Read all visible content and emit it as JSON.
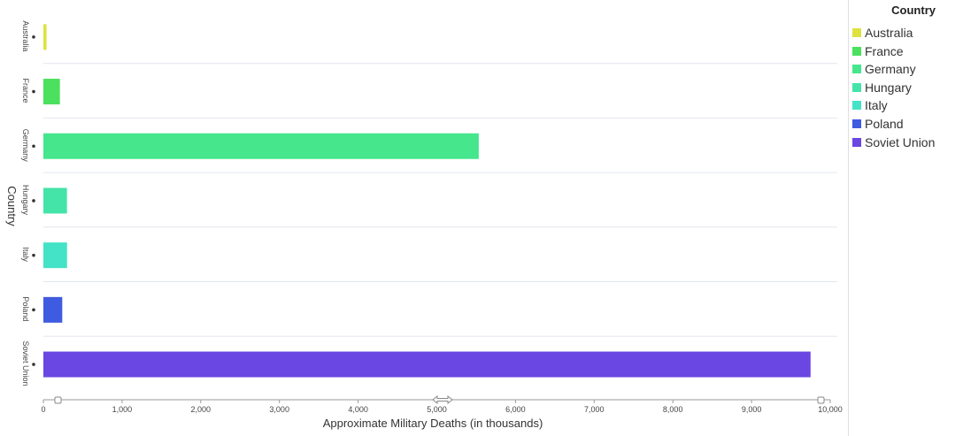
{
  "chart_data": {
    "type": "bar",
    "orientation": "horizontal",
    "categories": [
      "Australia",
      "France",
      "Germany",
      "Hungary",
      "Italy",
      "Poland",
      "Soviet Union"
    ],
    "values": [
      40,
      210,
      5533,
      300,
      301,
      240,
      9750
    ],
    "colors": [
      "#dde23f",
      "#4be05e",
      "#45e68c",
      "#44e4a9",
      "#44e2c6",
      "#3f5be0",
      "#6a46e3"
    ],
    "xlabel": "Approximate Military Deaths (in thousands)",
    "ylabel": "Country",
    "xlim": [
      0,
      10000
    ],
    "xticks": [
      "0",
      "1,000",
      "2,000",
      "3,000",
      "4,000",
      "5,000",
      "6,000",
      "7,000",
      "8,000",
      "9,000",
      "10,000"
    ],
    "grid": true,
    "legend_position": "right"
  },
  "legend": {
    "title": "Country",
    "items": [
      "Australia",
      "France",
      "Germany",
      "Hungary",
      "Italy",
      "Poland",
      "Soviet Union"
    ]
  }
}
